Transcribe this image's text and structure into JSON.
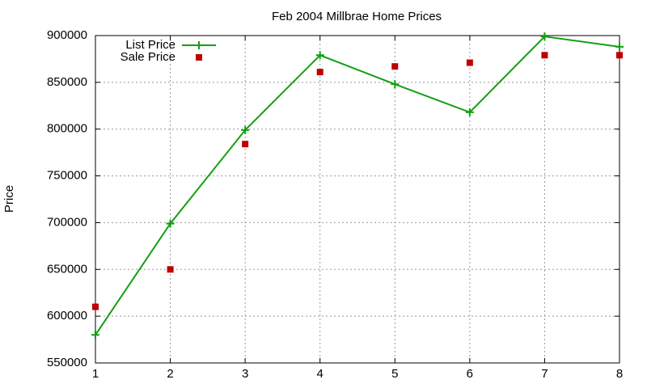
{
  "chart_data": {
    "type": "line",
    "title": "Feb 2004 Millbrae Home Prices",
    "y_label": "Price",
    "x": [
      1,
      2,
      3,
      4,
      5,
      6,
      7,
      8
    ],
    "series": [
      {
        "name": "List Price",
        "color": "#11a011",
        "line": true,
        "marker": "plus",
        "values": [
          580000,
          699000,
          799000,
          879000,
          848000,
          818000,
          899000,
          888000
        ]
      },
      {
        "name": "Sale Price",
        "color": "#c00000",
        "line": false,
        "marker": "square",
        "values": [
          610000,
          650000,
          784000,
          861000,
          867000,
          871000,
          879000,
          879000
        ]
      }
    ],
    "xlim": [
      1,
      8
    ],
    "xticks": [
      1,
      2,
      3,
      4,
      5,
      6,
      7,
      8
    ],
    "ylim": [
      550000,
      900000
    ],
    "yticks": [
      550000,
      600000,
      650000,
      700000,
      750000,
      800000,
      850000,
      900000
    ],
    "grid": true,
    "legend": "top-left"
  }
}
